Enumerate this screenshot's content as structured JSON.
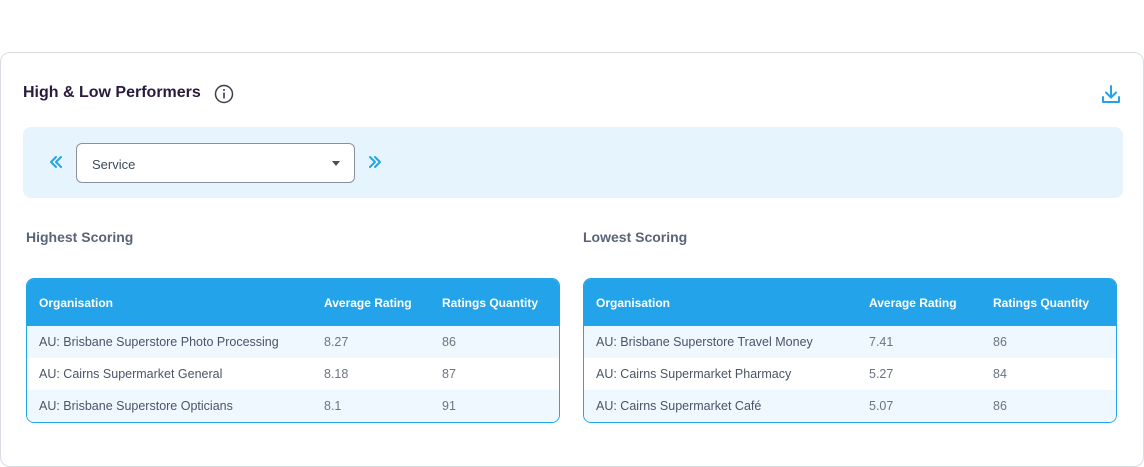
{
  "card": {
    "title": "High & Low Performers",
    "info_icon": "info-circle-icon",
    "download_icon": "download-icon"
  },
  "filter": {
    "prev_icon": "double-chevron-left-icon",
    "next_icon": "double-chevron-right-icon",
    "selected_value": "Service"
  },
  "highest": {
    "title": "Highest Scoring",
    "headers": [
      "Organisation",
      "Average Rating",
      "Ratings Quantity"
    ],
    "rows": [
      [
        "AU: Brisbane Superstore Photo Processing",
        "8.27",
        "86"
      ],
      [
        "AU: Cairns Supermarket General",
        "8.18",
        "87"
      ],
      [
        "AU: Brisbane Superstore Opticians",
        "8.1",
        "91"
      ]
    ]
  },
  "lowest": {
    "title": "Lowest Scoring",
    "headers": [
      "Organisation",
      "Average Rating",
      "Ratings Quantity"
    ],
    "rows": [
      [
        "AU: Brisbane Superstore Travel Money",
        "7.41",
        "86"
      ],
      [
        "AU: Cairns Supermarket Pharmacy",
        "5.27",
        "84"
      ],
      [
        "AU: Cairns Supermarket Café",
        "5.07",
        "86"
      ]
    ]
  },
  "colors": {
    "accent": "#23a4ea",
    "filter_bg": "#e6f4fd",
    "row_alt": "#eef8fe"
  }
}
